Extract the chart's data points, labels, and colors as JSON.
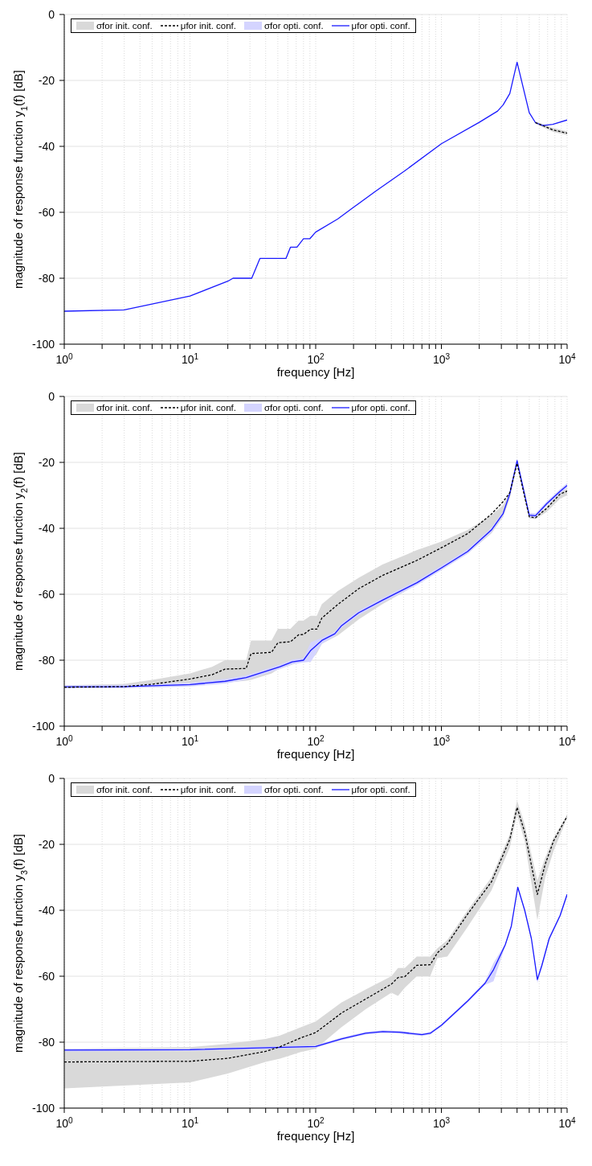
{
  "chart_data": [
    {
      "type": "line",
      "xlabel": "frequency [Hz]",
      "ylabel": "magnitude of response function y$_{1}$(f) [dB]",
      "log": "x",
      "xlim": [
        1,
        10000
      ],
      "ylim": [
        -100,
        0
      ],
      "yticks": [
        -100,
        -80,
        -60,
        -40,
        -20,
        0
      ],
      "grid": true,
      "legend": "top",
      "xticks": [
        {
          "value": 1,
          "label": "10$^{0}$"
        },
        {
          "value": 2,
          "label": null
        },
        {
          "value": 3,
          "label": null
        },
        {
          "value": 4,
          "label": null
        },
        {
          "value": 5,
          "label": null
        },
        {
          "value": 6,
          "label": null
        },
        {
          "value": 7,
          "label": null
        },
        {
          "value": 8,
          "label": null
        },
        {
          "value": 9,
          "label": null
        },
        {
          "value": 10,
          "label": "10$^{1}$"
        },
        {
          "value": 20,
          "label": null
        },
        {
          "value": 30,
          "label": null
        },
        {
          "value": 40,
          "label": null
        },
        {
          "value": 50,
          "label": null
        },
        {
          "value": 60,
          "label": null
        },
        {
          "value": 70,
          "label": null
        },
        {
          "value": 80,
          "label": null
        },
        {
          "value": 90,
          "label": null
        },
        {
          "value": 100,
          "label": "10$^{2}$"
        },
        {
          "value": 200,
          "label": null
        },
        {
          "value": 300,
          "label": null
        },
        {
          "value": 400,
          "label": null
        },
        {
          "value": 500,
          "label": null
        },
        {
          "value": 600,
          "label": null
        },
        {
          "value": 700,
          "label": null
        },
        {
          "value": 800,
          "label": null
        },
        {
          "value": 900,
          "label": null
        },
        {
          "value": 1000,
          "label": "10$^{3}$"
        },
        {
          "value": 2000,
          "label": null
        },
        {
          "value": 3000,
          "label": null
        },
        {
          "value": 4000,
          "label": null
        },
        {
          "value": 5000,
          "label": null
        },
        {
          "value": 6000,
          "label": null
        },
        {
          "value": 7000,
          "label": null
        },
        {
          "value": 8000,
          "label": null
        },
        {
          "value": 9000,
          "label": null
        },
        {
          "value": 10000,
          "label": "10$^{4}$"
        }
      ],
      "series": [
        {
          "name": "σfor init. conf.",
          "type": "area",
          "color": "#d9d9d9"
        },
        {
          "name": "μfor init. conf.",
          "type": "line",
          "color": "#000000",
          "line_style": "dashed",
          "x": [
            5600,
            6400,
            7700,
            10000
          ],
          "values": [
            -32.8,
            -33.7,
            -35,
            -36
          ],
          "lower": [
            -33.2,
            -34.2,
            -35.6,
            -36.6
          ],
          "upper": [
            -32.4,
            -33.2,
            -34.4,
            -35.4
          ]
        },
        {
          "name": "σfor opti. conf.",
          "type": "area",
          "color": "#d4d4ff"
        },
        {
          "name": "μfor opti. conf.",
          "type": "line",
          "color": "#1a1aff",
          "line_style": "solid",
          "x": [
            1,
            3,
            10,
            20,
            22,
            31,
            36,
            58,
            63,
            71,
            80,
            90,
            100,
            150,
            200,
            300,
            500,
            1000,
            2000,
            2800,
            3100,
            3500,
            4000,
            5000,
            5600,
            6400,
            7700,
            10000
          ],
          "values": [
            -90,
            -89.6,
            -85.4,
            -80.9,
            -80,
            -80,
            -74,
            -74,
            -70.6,
            -70.6,
            -68,
            -68,
            -66,
            -62,
            -58.5,
            -53.6,
            -47.7,
            -39.2,
            -32.7,
            -29.3,
            -27.4,
            -24,
            -14.5,
            -29.8,
            -32.8,
            -33.7,
            -33.3,
            -32
          ]
        }
      ]
    },
    {
      "type": "line",
      "xlabel": "frequency [Hz]",
      "ylabel": "magnitude of response function y$_{2}$(f) [dB]",
      "log": "x",
      "xlim": [
        1,
        10000
      ],
      "ylim": [
        -100,
        0
      ],
      "yticks": [
        -100,
        -80,
        -60,
        -40,
        -20,
        0
      ],
      "grid": true,
      "legend": "top",
      "xticks": [
        {
          "value": 1,
          "label": "10$^{0}$"
        },
        {
          "value": 2,
          "label": null
        },
        {
          "value": 3,
          "label": null
        },
        {
          "value": 4,
          "label": null
        },
        {
          "value": 5,
          "label": null
        },
        {
          "value": 6,
          "label": null
        },
        {
          "value": 7,
          "label": null
        },
        {
          "value": 8,
          "label": null
        },
        {
          "value": 9,
          "label": null
        },
        {
          "value": 10,
          "label": "10$^{1}$"
        },
        {
          "value": 20,
          "label": null
        },
        {
          "value": 30,
          "label": null
        },
        {
          "value": 40,
          "label": null
        },
        {
          "value": 50,
          "label": null
        },
        {
          "value": 60,
          "label": null
        },
        {
          "value": 70,
          "label": null
        },
        {
          "value": 80,
          "label": null
        },
        {
          "value": 90,
          "label": null
        },
        {
          "value": 100,
          "label": "10$^{2}$"
        },
        {
          "value": 200,
          "label": null
        },
        {
          "value": 300,
          "label": null
        },
        {
          "value": 400,
          "label": null
        },
        {
          "value": 500,
          "label": null
        },
        {
          "value": 600,
          "label": null
        },
        {
          "value": 700,
          "label": null
        },
        {
          "value": 800,
          "label": null
        },
        {
          "value": 900,
          "label": null
        },
        {
          "value": 1000,
          "label": "10$^{3}$"
        },
        {
          "value": 2000,
          "label": null
        },
        {
          "value": 3000,
          "label": null
        },
        {
          "value": 4000,
          "label": null
        },
        {
          "value": 5000,
          "label": null
        },
        {
          "value": 6000,
          "label": null
        },
        {
          "value": 7000,
          "label": null
        },
        {
          "value": 8000,
          "label": null
        },
        {
          "value": 9000,
          "label": null
        },
        {
          "value": 10000,
          "label": "10$^{4}$"
        }
      ],
      "series": [
        {
          "name": "σfor init. conf.",
          "type": "area",
          "color": "#d9d9d9"
        },
        {
          "name": "μfor init. conf.",
          "type": "line",
          "color": "#000000",
          "line_style": "dashed",
          "x": [
            1,
            3,
            5,
            10,
            15,
            19,
            28,
            30.6,
            44.6,
            50,
            63,
            73,
            80,
            91,
            102,
            112,
            150,
            220,
            340,
            640,
            1000,
            1620,
            2500,
            3100,
            3500,
            4000,
            5000,
            5600,
            6900,
            8800,
            10000
          ],
          "values": [
            -88.2,
            -88,
            -87.3,
            -85.7,
            -84.4,
            -82.7,
            -82.5,
            -78,
            -77.6,
            -74.7,
            -74.4,
            -72.3,
            -72.2,
            -70.6,
            -70.6,
            -67.2,
            -63.1,
            -58.3,
            -54.3,
            -49.7,
            -45.9,
            -41.6,
            -35.7,
            -31.9,
            -29.2,
            -20.3,
            -36.5,
            -36.8,
            -33.9,
            -29.6,
            -28.7
          ],
          "lower": [
            -88.5,
            -88.3,
            -88.1,
            -87.6,
            -87.1,
            -86.8,
            -86.2,
            -86,
            -84,
            -82.8,
            -81.5,
            -80.6,
            -80,
            -80,
            -78,
            -75,
            -72.5,
            -67.6,
            -63,
            -57,
            -52.5,
            -47.6,
            -41.5,
            -36.5,
            -31,
            -21,
            -37,
            -37.2,
            -35,
            -31,
            -30
          ],
          "upper": [
            -87.6,
            -87.2,
            -86,
            -84,
            -82,
            -80,
            -80,
            -74,
            -74,
            -70.5,
            -70.5,
            -68,
            -68,
            -66.5,
            -66.5,
            -63,
            -59,
            -55,
            -51,
            -46.6,
            -44,
            -40.5,
            -36,
            -33,
            -29,
            -20,
            -36,
            -36.5,
            -33.5,
            -29,
            -28
          ]
        },
        {
          "name": "σfor opti. conf.",
          "type": "area",
          "color": "#d4d4ff"
        },
        {
          "name": "μfor opti. conf.",
          "type": "line",
          "color": "#1a1aff",
          "line_style": "solid",
          "x": [
            1,
            3,
            10,
            19,
            28,
            52,
            65,
            80,
            91.5,
            112,
            142,
            161,
            220,
            340,
            640,
            1000,
            1620,
            2500,
            3100,
            3500,
            4000,
            5000,
            5600,
            6900,
            8800,
            10000
          ],
          "values": [
            -88.1,
            -88,
            -87.4,
            -86.4,
            -85.3,
            -82,
            -80.5,
            -80,
            -77,
            -74,
            -72,
            -69.5,
            -65.6,
            -61.8,
            -56.5,
            -52,
            -47,
            -40.5,
            -35.5,
            -29.5,
            -19.5,
            -36,
            -36.2,
            -32.5,
            -28.8,
            -27
          ],
          "lower": [
            -88.6,
            -88.5,
            -88,
            -87.1,
            -86,
            -82.7,
            -81.2,
            -80.7,
            -80.5,
            -75,
            -72.7,
            -70.2,
            -66.3,
            -62.5,
            -57.2,
            -52.7,
            -47.7,
            -41.2,
            -36.2,
            -30.2,
            -20.2,
            -36.7,
            -36.9,
            -33.2,
            -29.5,
            -27.7
          ],
          "upper": [
            -87.6,
            -87.5,
            -86.8,
            -85.7,
            -84.6,
            -81.3,
            -79.8,
            -79.3,
            -74.6,
            -73.2,
            -71.3,
            -68.8,
            -64.9,
            -61.1,
            -55.8,
            -51.3,
            -46.3,
            -39.8,
            -34.8,
            -28.8,
            -18.8,
            -35.3,
            -35.5,
            -31.8,
            -28.1,
            -26.3
          ]
        }
      ]
    },
    {
      "type": "line",
      "xlabel": "frequency [Hz]",
      "ylabel": "magnitude of response function y$_{3}$(f) [dB]",
      "log": "x",
      "xlim": [
        1,
        10000
      ],
      "ylim": [
        -100,
        0
      ],
      "yticks": [
        -100,
        -80,
        -60,
        -40,
        -20,
        0
      ],
      "grid": true,
      "legend": "top",
      "xticks": [
        {
          "value": 1,
          "label": "10$^{0}$"
        },
        {
          "value": 2,
          "label": null
        },
        {
          "value": 3,
          "label": null
        },
        {
          "value": 4,
          "label": null
        },
        {
          "value": 5,
          "label": null
        },
        {
          "value": 6,
          "label": null
        },
        {
          "value": 7,
          "label": null
        },
        {
          "value": 8,
          "label": null
        },
        {
          "value": 9,
          "label": null
        },
        {
          "value": 10,
          "label": "10$^{1}$"
        },
        {
          "value": 20,
          "label": null
        },
        {
          "value": 30,
          "label": null
        },
        {
          "value": 40,
          "label": null
        },
        {
          "value": 50,
          "label": null
        },
        {
          "value": 60,
          "label": null
        },
        {
          "value": 70,
          "label": null
        },
        {
          "value": 80,
          "label": null
        },
        {
          "value": 90,
          "label": null
        },
        {
          "value": 100,
          "label": "10$^{2}$"
        },
        {
          "value": 200,
          "label": null
        },
        {
          "value": 300,
          "label": null
        },
        {
          "value": 400,
          "label": null
        },
        {
          "value": 500,
          "label": null
        },
        {
          "value": 600,
          "label": null
        },
        {
          "value": 700,
          "label": null
        },
        {
          "value": 800,
          "label": null
        },
        {
          "value": 900,
          "label": null
        },
        {
          "value": 1000,
          "label": "10$^{3}$"
        },
        {
          "value": 2000,
          "label": null
        },
        {
          "value": 3000,
          "label": null
        },
        {
          "value": 4000,
          "label": null
        },
        {
          "value": 5000,
          "label": null
        },
        {
          "value": 6000,
          "label": null
        },
        {
          "value": 7000,
          "label": null
        },
        {
          "value": 8000,
          "label": null
        },
        {
          "value": 9000,
          "label": null
        },
        {
          "value": 10000,
          "label": "10$^{4}$"
        }
      ],
      "series": [
        {
          "name": "σfor init. conf.",
          "type": "area",
          "color": "#d9d9d9"
        },
        {
          "name": "μfor init. conf.",
          "type": "line",
          "color": "#000000",
          "line_style": "dashed",
          "x": [
            1,
            10,
            20,
            40,
            52,
            76,
            100,
            160,
            250,
            400,
            452,
            512,
            637,
            815,
            930,
            1115,
            1620,
            2500,
            3500,
            4000,
            4600,
            5800,
            6700,
            7800,
            10000
          ],
          "values": [
            -86,
            -85.8,
            -84.9,
            -82.8,
            -81.4,
            -78.7,
            -77.1,
            -71.2,
            -66.9,
            -62.4,
            -60.4,
            -60.1,
            -56.7,
            -56.5,
            -52.9,
            -50.2,
            -41.1,
            -31.4,
            -18.5,
            -8.8,
            -16.3,
            -35.2,
            -26,
            -19,
            -11.5
          ],
          "lower": [
            -94,
            -92.2,
            -89.5,
            -86,
            -85,
            -83,
            -82,
            -75.5,
            -70,
            -65,
            -66,
            -63.5,
            -60,
            -60,
            -54.5,
            -54,
            -45,
            -34,
            -21,
            -11,
            -19,
            -43,
            -30,
            -22,
            -12
          ],
          "upper": [
            -82,
            -81.5,
            -80.5,
            -79,
            -78,
            -75.5,
            -73.7,
            -68,
            -64,
            -60,
            -57.5,
            -57.5,
            -54,
            -54,
            -51.5,
            -49,
            -40,
            -30,
            -17,
            -6.7,
            -14,
            -31,
            -24,
            -18,
            -11
          ]
        },
        {
          "name": "σfor opti. conf.",
          "type": "area",
          "color": "#d4d4ff"
        },
        {
          "name": "μfor opti. conf.",
          "type": "line",
          "color": "#1a1aff",
          "line_style": "solid",
          "x": [
            1,
            10,
            100,
            161,
            250,
            342,
            465,
            700,
            815,
            1000,
            1620,
            2220,
            2600,
            3220,
            3600,
            4050,
            4600,
            5200,
            5800,
            6300,
            7200,
            8800,
            10000
          ],
          "values": [
            -82.4,
            -82.3,
            -81.3,
            -79,
            -77.3,
            -76.8,
            -77,
            -77.7,
            -77.3,
            -74.9,
            -67.5,
            -62.2,
            -58,
            -50.5,
            -44.8,
            -33,
            -40,
            -48.6,
            -61,
            -56.7,
            -48.6,
            -41.6,
            -35.2
          ],
          "lower": [
            -82.8,
            -82.7,
            -81.7,
            -79.4,
            -77.7,
            -77.2,
            -77.4,
            -78.1,
            -77.7,
            -75.3,
            -67.9,
            -62.6,
            -61.5,
            -50.9,
            -45.2,
            -33.4,
            -40.4,
            -49,
            -62,
            -57.5,
            -49.2,
            -42.1,
            -35.7
          ],
          "upper": [
            -82,
            -81.9,
            -80.9,
            -78.6,
            -76.9,
            -76.4,
            -76.6,
            -77.3,
            -76.9,
            -74.5,
            -67.1,
            -61.6,
            -56,
            -50.1,
            -44.4,
            -32.6,
            -39.6,
            -48.2,
            -60.3,
            -56,
            -48,
            -41.1,
            -34.7
          ]
        }
      ]
    }
  ]
}
